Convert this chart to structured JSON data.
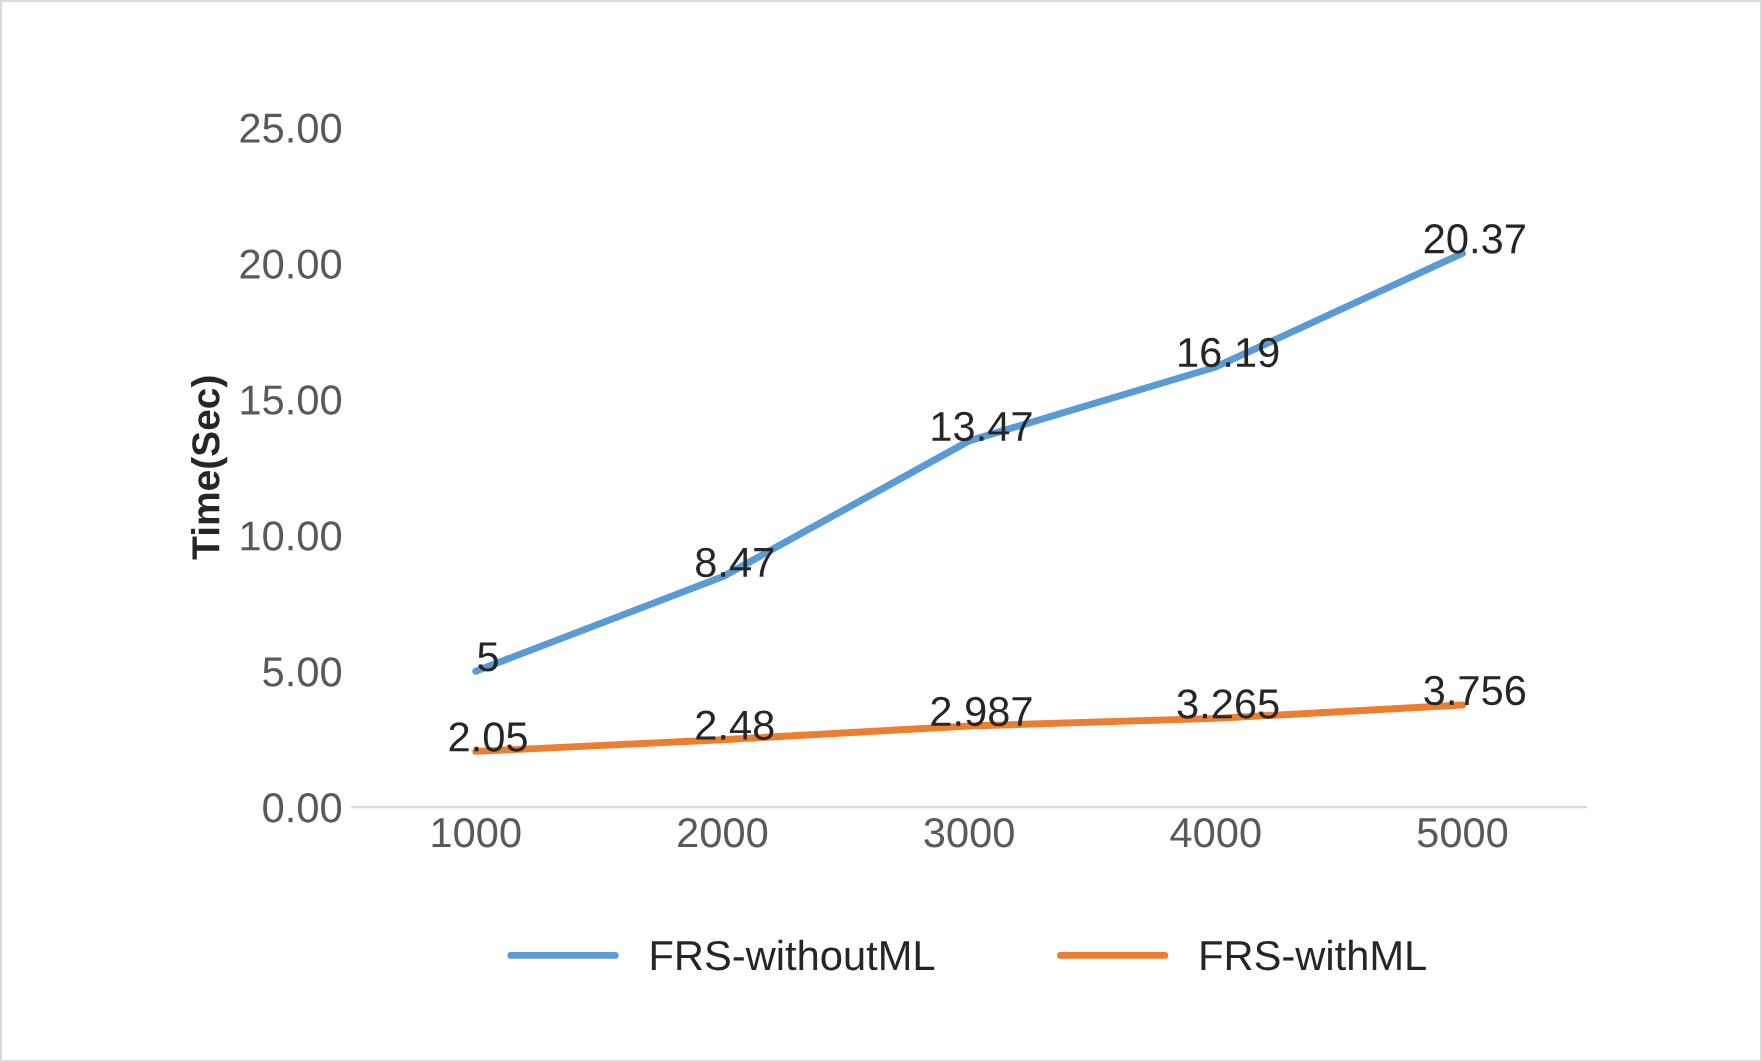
{
  "chart_data": {
    "type": "line",
    "ylabel": "Time(Sec)",
    "categories": [
      "1000",
      "2000",
      "3000",
      "4000",
      "5000"
    ],
    "series": [
      {
        "name": "FRS-withoutML",
        "color": "#5b9bd5",
        "values": [
          5,
          8.47,
          13.47,
          16.19,
          20.37
        ]
      },
      {
        "name": "FRS-withML",
        "color": "#ed7d31",
        "values": [
          2.05,
          2.48,
          2.987,
          3.265,
          3.756
        ]
      }
    ],
    "ylim": [
      0,
      25
    ],
    "yticks": [
      {
        "value": 0,
        "label": "0.00"
      },
      {
        "value": 5,
        "label": "5.00"
      },
      {
        "value": 10,
        "label": "10.00"
      },
      {
        "value": 15,
        "label": "15.00"
      },
      {
        "value": 20,
        "label": "20.00"
      },
      {
        "value": 25,
        "label": "25.00"
      }
    ],
    "data_labels": true,
    "legend": "bottom",
    "grid": false,
    "marker": "none",
    "line_style": "solid"
  }
}
